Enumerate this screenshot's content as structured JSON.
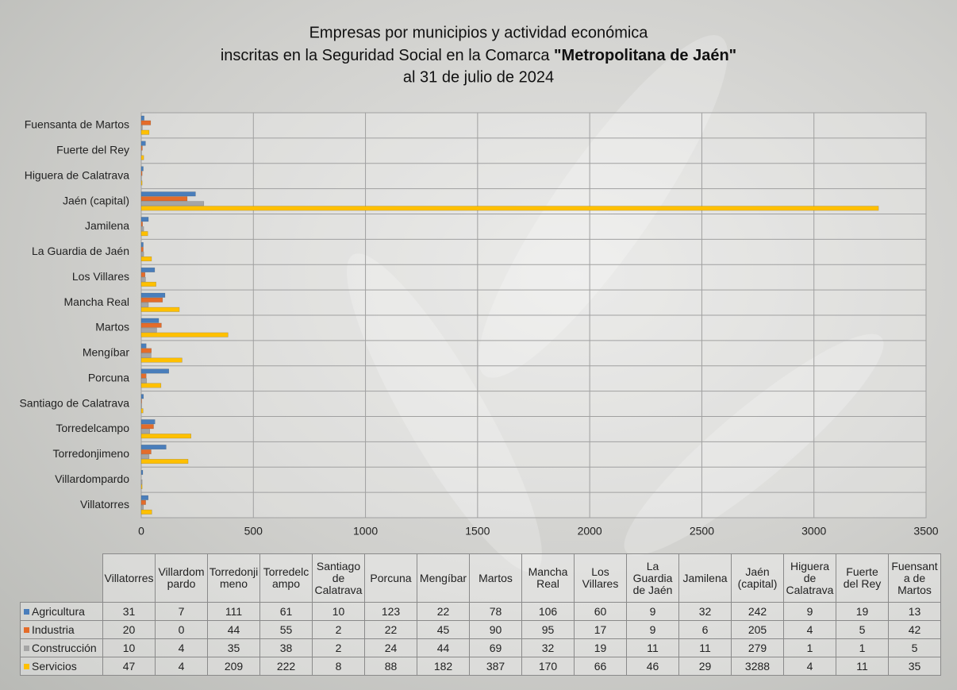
{
  "chart_data": {
    "type": "hbar",
    "title": {
      "line1": "Empresas por municipios y actividad económica",
      "line2": "inscritas en la Seguridad Social en la Comarca ",
      "line2_bold": "\"Metropolitana de Jaén\"",
      "line3": "al 31 de julio de 2024"
    },
    "categories": [
      "Villatorres",
      "Villardompardo",
      "Torredonjimeno",
      "Torredelcampo",
      "Santiago de Calatrava",
      "Porcuna",
      "Mengíbar",
      "Martos",
      "Mancha Real",
      "Los Villares",
      "La Guardia de Jaén",
      "Jamilena",
      "Jaén (capital)",
      "Higuera de Calatrava",
      "Fuerte del Rey",
      "Fuensanta de Martos"
    ],
    "series": [
      {
        "name": "Agricultura",
        "color": "#4a7ebb",
        "values": [
          31,
          7,
          111,
          61,
          10,
          123,
          22,
          78,
          106,
          60,
          9,
          32,
          242,
          9,
          19,
          13
        ]
      },
      {
        "name": "Industria",
        "color": "#e46c2a",
        "values": [
          20,
          0,
          44,
          55,
          2,
          22,
          45,
          90,
          95,
          17,
          9,
          6,
          205,
          4,
          5,
          42
        ]
      },
      {
        "name": "Construcción",
        "color": "#a5a5a5",
        "values": [
          10,
          4,
          35,
          38,
          2,
          24,
          44,
          69,
          32,
          19,
          11,
          11,
          279,
          1,
          1,
          5
        ]
      },
      {
        "name": "Servicios",
        "color": "#ffc000",
        "values": [
          47,
          4,
          209,
          222,
          8,
          88,
          182,
          387,
          170,
          66,
          46,
          29,
          3288,
          4,
          11,
          35
        ]
      }
    ],
    "xlim": [
      0,
      3500
    ],
    "xticks": [
      0,
      500,
      1000,
      1500,
      2000,
      2500,
      3000,
      3500
    ],
    "grid": true
  }
}
